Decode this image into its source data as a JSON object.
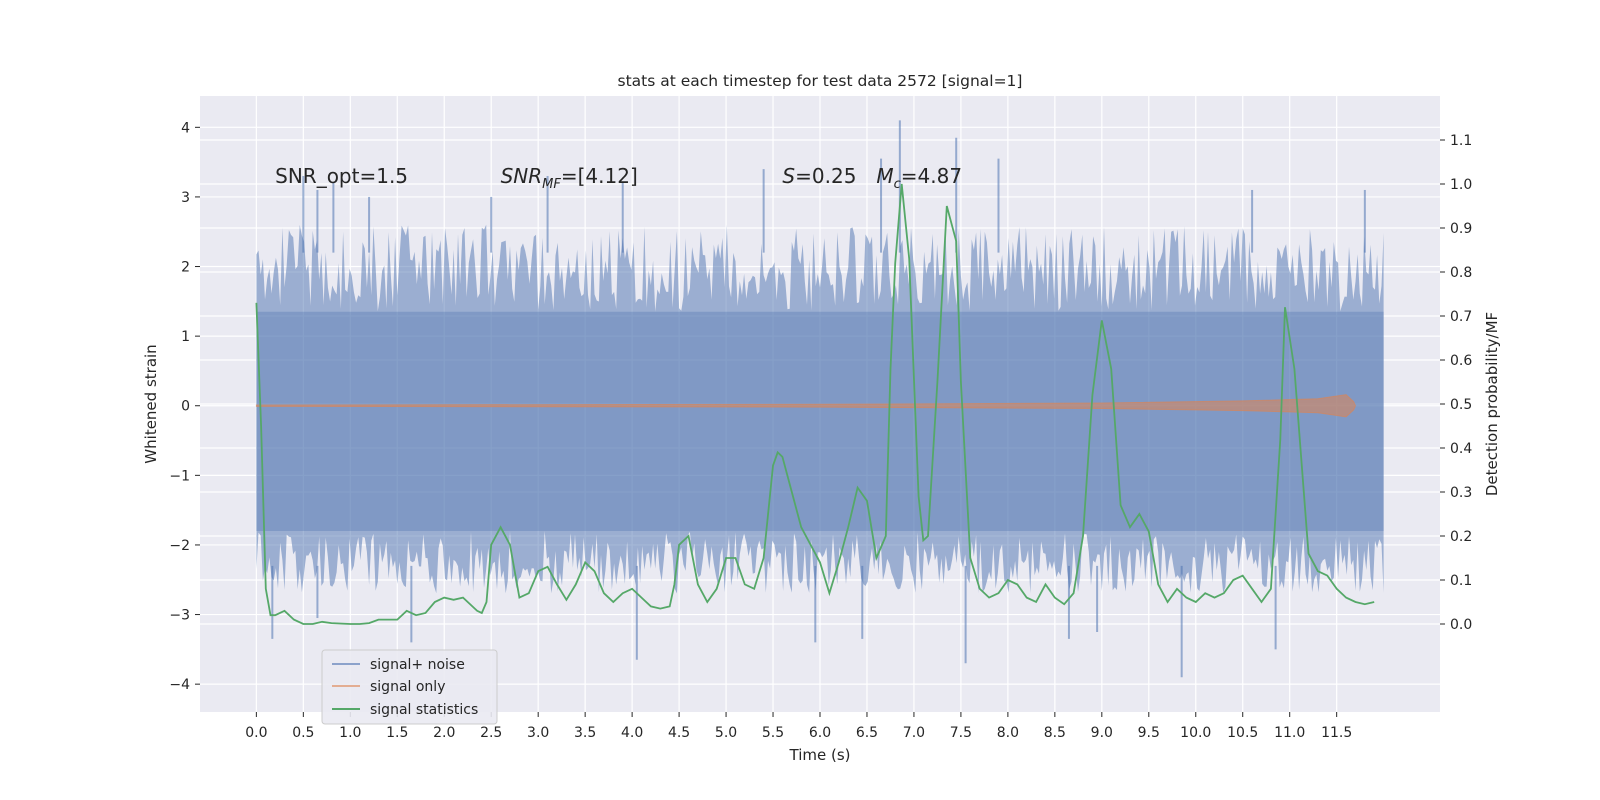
{
  "chart_data": {
    "type": "line",
    "title": "stats at each timestep for test data 2572 [signal=1]",
    "xlabel": "Time (s)",
    "ylabel_left": "Whitened strain",
    "ylabel_right": "Detection probability/MF",
    "xlim": [
      -0.6,
      12.6
    ],
    "ylim_left": [
      -4.4,
      4.45
    ],
    "ylim_right": [
      -0.2,
      1.2
    ],
    "x_ticks": [
      0.0,
      0.5,
      1.0,
      1.5,
      2.0,
      2.5,
      3.0,
      3.5,
      4.0,
      4.5,
      5.0,
      5.5,
      6.0,
      6.5,
      7.0,
      7.5,
      8.0,
      8.5,
      9.0,
      9.5,
      10.0,
      10.5,
      11.0,
      11.5
    ],
    "x_tick_labels": [
      "0.0",
      "0.5",
      "1.0",
      "1.5",
      "2.0",
      "2.5",
      "3.0",
      "3.5",
      "4.0",
      "4.5",
      "5.0",
      "5.5",
      "6.0",
      "6.5",
      "7.0",
      "7.5",
      "8.0",
      "8.5",
      "9.0",
      "9.5",
      "10.0",
      "10.5",
      "11.0",
      "11.5"
    ],
    "y_left_ticks": [
      -4,
      -3,
      -2,
      -1,
      0,
      1,
      2,
      3,
      4
    ],
    "y_left_tick_labels": [
      "−4",
      "−3",
      "−2",
      "−1",
      "0",
      "1",
      "2",
      "3",
      "4"
    ],
    "y_right_ticks": [
      0.0,
      0.1,
      0.2,
      0.3,
      0.4,
      0.5,
      0.6,
      0.7,
      0.8,
      0.9,
      1.0,
      1.1
    ],
    "y_right_tick_labels": [
      "0.0",
      "0.1",
      "0.2",
      "0.3",
      "0.4",
      "0.5",
      "0.6",
      "0.7",
      "0.8",
      "0.9",
      "1.0",
      "1.1"
    ],
    "grid": true,
    "legend_position": "lower-left",
    "annotations": [
      {
        "text": "SNR_opt=1.5",
        "x": 0.2,
        "y": 3.2
      },
      {
        "text": "SNR_MF=[4.12]",
        "x": 2.6,
        "y": 3.2
      },
      {
        "text": "S=0.25",
        "x": 5.6,
        "y": 3.2
      },
      {
        "text": "M_c=4.87",
        "x": 6.6,
        "y": 3.2
      }
    ],
    "noise_band": {
      "x_range": [
        0.0,
        12.0
      ],
      "core_range": [
        -1.8,
        1.35
      ],
      "typical_peak_range": [
        -2.7,
        2.6
      ],
      "max": 4.1,
      "min": -3.9,
      "spikes": [
        {
          "x": 0.5,
          "y": 3.3
        },
        {
          "x": 0.65,
          "y": 3.1
        },
        {
          "x": 0.82,
          "y": 3.2
        },
        {
          "x": 1.2,
          "y": 3.0
        },
        {
          "x": 2.5,
          "y": 3.0
        },
        {
          "x": 3.1,
          "y": 3.3
        },
        {
          "x": 3.9,
          "y": 3.2
        },
        {
          "x": 5.4,
          "y": 3.4
        },
        {
          "x": 6.65,
          "y": 3.55
        },
        {
          "x": 6.85,
          "y": 4.1
        },
        {
          "x": 7.45,
          "y": 3.85
        },
        {
          "x": 7.9,
          "y": 3.55
        },
        {
          "x": 10.6,
          "y": 3.1
        },
        {
          "x": 11.8,
          "y": 3.1
        },
        {
          "x": 0.17,
          "y": -3.35
        },
        {
          "x": 0.65,
          "y": -3.05
        },
        {
          "x": 1.65,
          "y": -3.4
        },
        {
          "x": 4.05,
          "y": -3.65
        },
        {
          "x": 5.95,
          "y": -3.4
        },
        {
          "x": 6.45,
          "y": -3.35
        },
        {
          "x": 7.55,
          "y": -3.7
        },
        {
          "x": 8.65,
          "y": -3.35
        },
        {
          "x": 8.95,
          "y": -3.25
        },
        {
          "x": 9.85,
          "y": -3.9
        },
        {
          "x": 10.85,
          "y": -3.5
        }
      ]
    },
    "signal_only": {
      "x_range": [
        0.0,
        11.7
      ],
      "amplitude_envelope": [
        {
          "x": 0.0,
          "y": 0.01
        },
        {
          "x": 6.0,
          "y": 0.02
        },
        {
          "x": 9.0,
          "y": 0.04
        },
        {
          "x": 10.5,
          "y": 0.07
        },
        {
          "x": 11.3,
          "y": 0.1
        },
        {
          "x": 11.6,
          "y": 0.16
        },
        {
          "x": 11.68,
          "y": 0.06
        },
        {
          "x": 11.7,
          "y": 0.0
        }
      ]
    },
    "series": [
      {
        "name": "signal+ noise",
        "color": "#4c72b0",
        "alpha": 0.5
      },
      {
        "name": "signal only",
        "color": "#dd8452",
        "alpha": 0.5
      },
      {
        "name": "signal statistics",
        "color": "#55a868",
        "axis": "right",
        "x": [
          0.0,
          0.05,
          0.1,
          0.15,
          0.2,
          0.3,
          0.4,
          0.5,
          0.6,
          0.7,
          0.8,
          1.0,
          1.1,
          1.2,
          1.3,
          1.4,
          1.5,
          1.6,
          1.7,
          1.8,
          1.9,
          2.0,
          2.1,
          2.2,
          2.3,
          2.35,
          2.4,
          2.45,
          2.5,
          2.6,
          2.7,
          2.8,
          2.9,
          3.0,
          3.1,
          3.2,
          3.3,
          3.4,
          3.5,
          3.6,
          3.7,
          3.8,
          3.9,
          4.0,
          4.1,
          4.2,
          4.3,
          4.4,
          4.45,
          4.5,
          4.6,
          4.7,
          4.8,
          4.9,
          5.0,
          5.1,
          5.2,
          5.3,
          5.4,
          5.5,
          5.55,
          5.6,
          5.7,
          5.8,
          5.9,
          6.0,
          6.1,
          6.2,
          6.3,
          6.4,
          6.5,
          6.6,
          6.7,
          6.75,
          6.8,
          6.87,
          6.95,
          7.05,
          7.1,
          7.15,
          7.25,
          7.35,
          7.45,
          7.5,
          7.6,
          7.7,
          7.8,
          7.9,
          8.0,
          8.1,
          8.2,
          8.3,
          8.4,
          8.5,
          8.6,
          8.7,
          8.8,
          8.9,
          9.0,
          9.1,
          9.2,
          9.3,
          9.4,
          9.5,
          9.6,
          9.7,
          9.8,
          9.9,
          10.0,
          10.1,
          10.2,
          10.3,
          10.4,
          10.5,
          10.6,
          10.7,
          10.8,
          10.9,
          10.95,
          11.05,
          11.15,
          11.2,
          11.3,
          11.4,
          11.5,
          11.6,
          11.7,
          11.8,
          11.9
        ],
        "y": [
          0.73,
          0.45,
          0.08,
          0.02,
          0.02,
          0.03,
          0.01,
          0.0,
          0.0,
          0.005,
          0.002,
          0.0,
          0.0,
          0.002,
          0.01,
          0.01,
          0.01,
          0.03,
          0.02,
          0.025,
          0.05,
          0.06,
          0.055,
          0.06,
          0.04,
          0.03,
          0.025,
          0.05,
          0.18,
          0.22,
          0.18,
          0.06,
          0.07,
          0.12,
          0.13,
          0.09,
          0.055,
          0.09,
          0.14,
          0.12,
          0.07,
          0.05,
          0.07,
          0.08,
          0.06,
          0.04,
          0.035,
          0.04,
          0.09,
          0.18,
          0.2,
          0.09,
          0.05,
          0.08,
          0.15,
          0.15,
          0.09,
          0.08,
          0.15,
          0.36,
          0.39,
          0.38,
          0.3,
          0.22,
          0.18,
          0.14,
          0.07,
          0.14,
          0.22,
          0.31,
          0.28,
          0.15,
          0.2,
          0.58,
          0.82,
          1.0,
          0.83,
          0.29,
          0.19,
          0.2,
          0.55,
          0.95,
          0.87,
          0.55,
          0.15,
          0.08,
          0.06,
          0.07,
          0.1,
          0.09,
          0.06,
          0.05,
          0.09,
          0.06,
          0.045,
          0.07,
          0.2,
          0.52,
          0.69,
          0.58,
          0.27,
          0.22,
          0.25,
          0.21,
          0.09,
          0.05,
          0.08,
          0.06,
          0.05,
          0.07,
          0.06,
          0.07,
          0.1,
          0.11,
          0.08,
          0.05,
          0.08,
          0.42,
          0.72,
          0.58,
          0.3,
          0.16,
          0.12,
          0.11,
          0.08,
          0.06,
          0.05,
          0.045,
          0.05
        ]
      }
    ]
  }
}
